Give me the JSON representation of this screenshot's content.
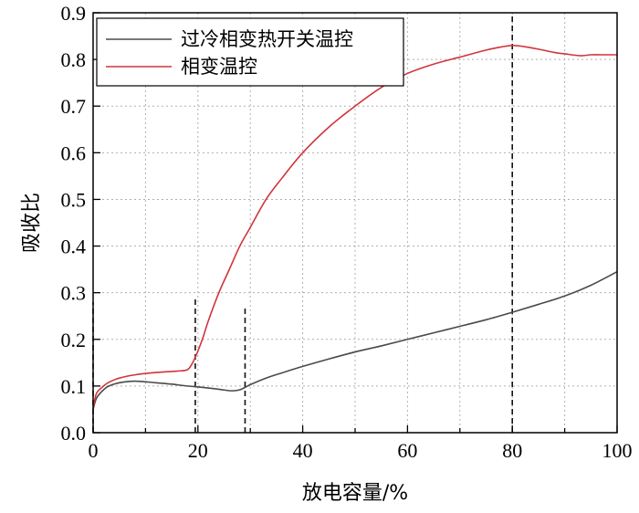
{
  "chart_data": {
    "type": "line",
    "xlabel": "放电容量/%",
    "ylabel": "吸收比",
    "xlim": [
      0,
      100
    ],
    "ylim": [
      0.0,
      0.9
    ],
    "xticks": [
      "0",
      "20",
      "40",
      "60",
      "80",
      "100"
    ],
    "yticks": [
      "0.0",
      "0.1",
      "0.2",
      "0.3",
      "0.4",
      "0.5",
      "0.6",
      "0.7",
      "0.8",
      "0.9"
    ],
    "grid": true,
    "legend_position": "top-left",
    "series": [
      {
        "name": "过冷相变热开关温控",
        "color": "#4a4a4a",
        "x": [
          0,
          0.5,
          1,
          2,
          3,
          5,
          7,
          9,
          12,
          15,
          18,
          21,
          24,
          26,
          27,
          28,
          29,
          30,
          33,
          36,
          40,
          45,
          50,
          55,
          60,
          65,
          70,
          75,
          80,
          85,
          90,
          95,
          100
        ],
        "y": [
          0.05,
          0.07,
          0.08,
          0.092,
          0.1,
          0.107,
          0.11,
          0.11,
          0.107,
          0.104,
          0.1,
          0.097,
          0.093,
          0.09,
          0.09,
          0.092,
          0.097,
          0.103,
          0.117,
          0.128,
          0.142,
          0.158,
          0.173,
          0.186,
          0.2,
          0.214,
          0.228,
          0.242,
          0.258,
          0.275,
          0.293,
          0.316,
          0.345
        ]
      },
      {
        "name": "相变温控",
        "color": "#d0353c",
        "x": [
          0,
          0.5,
          1,
          2,
          3,
          5,
          8,
          12,
          16,
          18,
          19,
          20,
          21,
          22,
          24,
          26,
          28,
          30,
          33,
          36,
          40,
          45,
          50,
          55,
          60,
          65,
          70,
          75,
          78,
          80,
          82,
          85,
          88,
          90,
          93,
          95,
          97,
          100
        ],
        "y": [
          0.05,
          0.08,
          0.09,
          0.1,
          0.108,
          0.117,
          0.124,
          0.129,
          0.132,
          0.135,
          0.15,
          0.175,
          0.205,
          0.24,
          0.3,
          0.35,
          0.4,
          0.44,
          0.5,
          0.545,
          0.6,
          0.655,
          0.7,
          0.74,
          0.77,
          0.79,
          0.805,
          0.82,
          0.827,
          0.83,
          0.828,
          0.822,
          0.815,
          0.812,
          0.808,
          0.81,
          0.81,
          0.81
        ]
      }
    ],
    "markers": [
      {
        "x": 0,
        "y_top": 0.28
      },
      {
        "x": 19.5,
        "y_top": 0.29
      },
      {
        "x": 29,
        "y_top": 0.27
      },
      {
        "x": 80,
        "y_top": 0.9
      }
    ]
  }
}
